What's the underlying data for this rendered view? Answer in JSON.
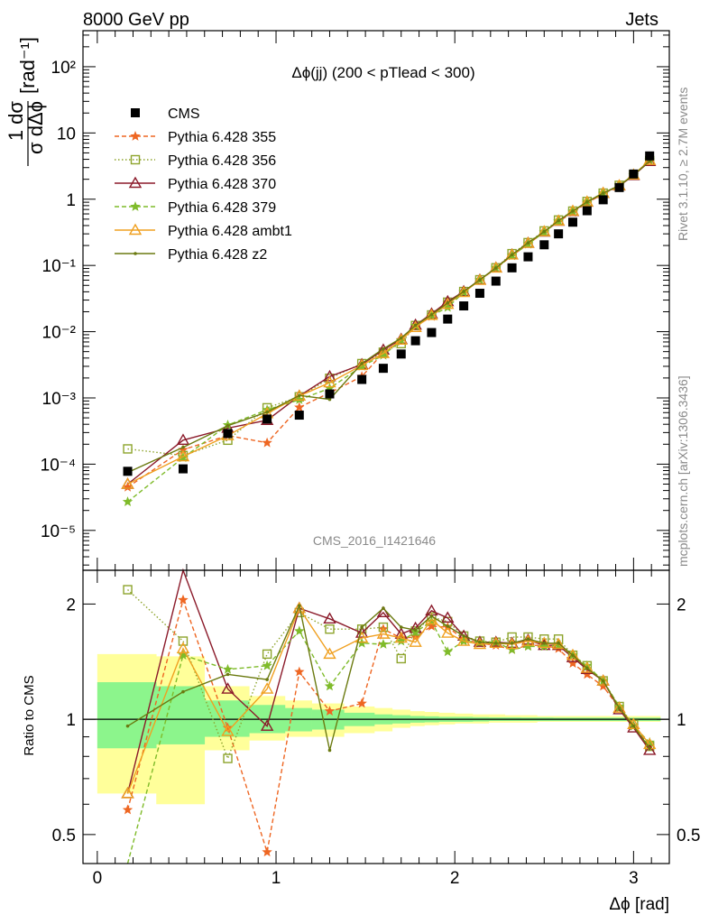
{
  "header": {
    "left": "8000 GeV pp",
    "right": "Jets"
  },
  "side": {
    "rivet": "Rivet 3.1.10, ≥ 2.7M events",
    "mcplots": "mcplots.cern.ch [arXiv:1306.3436]"
  },
  "chart_data": [
    {
      "type": "line",
      "title": "Δϕ(jj) (200 < pTlead <  300)",
      "watermark": "CMS_2016_I1421646",
      "xlabel": "Δϕ [rad]",
      "ylabel": "1/σ dσ/dΔϕ [rad⁻¹]",
      "yscale": "log",
      "xlim": [
        -0.08,
        3.2
      ],
      "ylim": [
        2.5e-06,
        350
      ],
      "y_ticks": [
        "10⁻⁵",
        "10⁻⁴",
        "10⁻³",
        "10⁻²",
        "10⁻¹",
        "1",
        "10",
        "10²"
      ],
      "legend_position": "top-left",
      "series": [
        {
          "name": "CMS",
          "color": "#000000",
          "marker": "square",
          "x": [
            0.17,
            0.48,
            0.73,
            0.95,
            1.13,
            1.3,
            1.48,
            1.6,
            1.7,
            1.78,
            1.87,
            1.96,
            2.05,
            2.14,
            2.23,
            2.32,
            2.41,
            2.5,
            2.58,
            2.66,
            2.74,
            2.83,
            2.92,
            3.0,
            3.09
          ],
          "values": [
            7.8e-05,
            8.5e-05,
            0.00029,
            0.00048,
            0.00055,
            0.00115,
            0.0019,
            0.0028,
            0.0046,
            0.0073,
            0.0097,
            0.0155,
            0.0245,
            0.038,
            0.058,
            0.092,
            0.135,
            0.205,
            0.3,
            0.45,
            0.67,
            0.98,
            1.5,
            2.4,
            4.5
          ]
        },
        {
          "name": "Pythia 6.428 355",
          "color": "#ee6622",
          "marker": "star",
          "dash": "5,3",
          "x": [
            0.17,
            0.48,
            0.73,
            0.95,
            1.13,
            1.3,
            1.48,
            1.6,
            1.7,
            1.78,
            1.87,
            1.96,
            2.05,
            2.14,
            2.23,
            2.32,
            2.41,
            2.5,
            2.58,
            2.66,
            2.74,
            2.83,
            2.92,
            3.0,
            3.09
          ],
          "values": [
            4.5e-05,
            0.000165,
            0.00027,
            0.00021,
            0.00072,
            0.0012,
            0.0021,
            0.0048,
            0.0075,
            0.012,
            0.017,
            0.027,
            0.04,
            0.06,
            0.09,
            0.14,
            0.21,
            0.32,
            0.46,
            0.63,
            0.88,
            1.2,
            1.6,
            2.3,
            3.8
          ]
        },
        {
          "name": "Pythia 6.428 356",
          "color": "#8da42c",
          "marker": "open-square",
          "dash": "1.5,2.5",
          "x": [
            0.17,
            0.48,
            0.73,
            0.95,
            1.13,
            1.3,
            1.48,
            1.6,
            1.7,
            1.78,
            1.87,
            1.96,
            2.05,
            2.14,
            2.23,
            2.32,
            2.41,
            2.5,
            2.58,
            2.66,
            2.74,
            2.83,
            2.92,
            3.0,
            3.09
          ],
          "values": [
            0.00017,
            0.000135,
            0.00023,
            0.00071,
            0.00104,
            0.00198,
            0.0033,
            0.0049,
            0.0066,
            0.0124,
            0.0179,
            0.0279,
            0.0404,
            0.0608,
            0.0922,
            0.1507,
            0.2209,
            0.3321,
            0.4851,
            0.6615,
            0.9246,
            1.2348,
            1.6215,
            2.328,
            3.825
          ]
        },
        {
          "name": "Pythia 6.428 370",
          "color": "#8b1a2a",
          "marker": "open-triangle",
          "dash": "",
          "x": [
            0.17,
            0.48,
            0.73,
            0.95,
            1.13,
            1.3,
            1.48,
            1.6,
            1.7,
            1.78,
            1.87,
            1.96,
            2.05,
            2.14,
            2.23,
            2.32,
            2.41,
            2.5,
            2.58,
            2.66,
            2.74,
            2.83,
            2.92,
            3.0,
            3.09
          ],
          "values": [
            5e-05,
            0.00023,
            0.00035,
            0.00046,
            0.00107,
            0.0021,
            0.0032,
            0.0053,
            0.0077,
            0.0126,
            0.0186,
            0.0285,
            0.0405,
            0.0605,
            0.0921,
            0.1453,
            0.2174,
            0.3199,
            0.4668,
            0.6541,
            0.9038,
            1.23,
            1.59,
            2.28,
            3.73
          ]
        },
        {
          "name": "Pythia 6.428 379",
          "color": "#7fbb2a",
          "marker": "star",
          "dash": "5,3",
          "x": [
            0.17,
            0.48,
            0.73,
            0.95,
            1.13,
            1.3,
            1.48,
            1.6,
            1.7,
            1.78,
            1.87,
            1.96,
            2.05,
            2.14,
            2.23,
            2.32,
            2.41,
            2.5,
            2.58,
            2.66,
            2.74,
            2.83,
            2.92,
            3.0,
            3.09
          ],
          "values": [
            2.7e-05,
            0.000125,
            0.00039,
            0.00066,
            0.00094,
            0.0014,
            0.003,
            0.0044,
            0.0074,
            0.0123,
            0.0175,
            0.0233,
            0.0392,
            0.0605,
            0.0922,
            0.1398,
            0.2093,
            0.3178,
            0.468,
            0.6615,
            0.9246,
            1.2348,
            1.6215,
            2.304,
            3.915
          ]
        },
        {
          "name": "Pythia 6.428 ambt1",
          "color": "#f0a020",
          "marker": "open-triangle",
          "dash": "",
          "x": [
            0.17,
            0.48,
            0.73,
            0.95,
            1.13,
            1.3,
            1.48,
            1.6,
            1.7,
            1.78,
            1.87,
            1.96,
            2.05,
            2.14,
            2.23,
            2.32,
            2.41,
            2.5,
            2.58,
            2.66,
            2.74,
            2.83,
            2.92,
            3.0,
            3.09
          ],
          "values": [
            5e-05,
            0.00013,
            0.00027,
            0.00058,
            0.00107,
            0.0017,
            0.0031,
            0.0047,
            0.0075,
            0.0116,
            0.0177,
            0.026,
            0.0392,
            0.0597,
            0.0916,
            0.1444,
            0.2165,
            0.324,
            0.471,
            0.6615,
            0.9112,
            1.2348,
            1.6065,
            2.328,
            3.87
          ]
        },
        {
          "name": "Pythia 6.428 z2",
          "color": "#6b7a10",
          "marker": "dot",
          "dash": "",
          "x": [
            0.17,
            0.48,
            0.73,
            0.95,
            1.13,
            1.3,
            1.48,
            1.6,
            1.7,
            1.78,
            1.87,
            1.96,
            2.05,
            2.14,
            2.23,
            2.32,
            2.41,
            2.5,
            2.58,
            2.66,
            2.74,
            2.83,
            2.92,
            3.0,
            3.09
          ],
          "values": [
            7.5e-05,
            0.00018,
            0.00038,
            0.00061,
            0.00109,
            0.00095,
            0.0033,
            0.0055,
            0.008,
            0.0125,
            0.018,
            0.0271,
            0.0404,
            0.0605,
            0.0916,
            0.1453,
            0.2187,
            0.324,
            0.474,
            0.6615,
            0.9112,
            1.2348,
            1.6065,
            2.304,
            3.78
          ]
        }
      ]
    },
    {
      "type": "line",
      "ylabel": "Ratio to CMS",
      "xlabel": "Δϕ [rad]",
      "yscale": "log",
      "ylim": [
        0.42,
        2.45
      ],
      "xlim": [
        -0.08,
        3.2
      ],
      "x_ticks": [
        "0",
        "1",
        "2",
        "3"
      ],
      "y_ticks": [
        "0.5",
        "1",
        "2"
      ],
      "bands": {
        "x_edges": [
          0.0,
          0.33,
          0.6,
          0.85,
          1.05,
          1.2,
          1.38,
          1.55,
          1.65,
          1.75,
          1.83,
          1.91,
          2.0,
          2.1,
          2.19,
          2.28,
          2.37,
          2.46,
          2.55,
          2.63,
          2.71,
          2.79,
          2.88,
          2.96,
          3.05,
          3.15
        ],
        "stat_low": [
          0.84,
          0.86,
          0.9,
          0.92,
          0.93,
          0.94,
          0.96,
          0.97,
          0.975,
          0.98,
          0.982,
          0.985,
          0.985,
          0.987,
          0.99,
          0.99,
          0.99,
          0.99,
          0.99,
          0.99,
          0.99,
          0.99,
          0.99,
          0.99,
          0.99
        ],
        "stat_high": [
          1.25,
          1.22,
          1.12,
          1.09,
          1.07,
          1.06,
          1.04,
          1.03,
          1.025,
          1.02,
          1.018,
          1.015,
          1.015,
          1.013,
          1.012,
          1.012,
          1.011,
          1.011,
          1.01,
          1.01,
          1.01,
          1.01,
          1.01,
          1.01,
          1.01
        ],
        "total_low": [
          0.64,
          0.6,
          0.83,
          0.88,
          0.9,
          0.9,
          0.92,
          0.93,
          0.95,
          0.96,
          0.965,
          0.97,
          0.975,
          0.975,
          0.98,
          0.98,
          0.98,
          0.985,
          0.985,
          0.985,
          0.985,
          0.985,
          0.985,
          0.985,
          0.985
        ],
        "total_high": [
          1.48,
          1.46,
          1.22,
          1.15,
          1.12,
          1.1,
          1.08,
          1.07,
          1.06,
          1.05,
          1.045,
          1.04,
          1.035,
          1.03,
          1.03,
          1.025,
          1.025,
          1.02,
          1.02,
          1.02,
          1.02,
          1.02,
          1.02,
          1.02,
          1.02
        ],
        "stat_color": "#8cf58c",
        "total_color": "#ffff9a"
      },
      "series": [
        {
          "name": "Pythia 6.428 355",
          "values": [
            0.58,
            2.05,
            0.95,
            0.45,
            1.33,
            1.05,
            1.1,
            1.72,
            1.63,
            1.64,
            1.75,
            1.74,
            1.62,
            1.58,
            1.56,
            1.52,
            1.56,
            1.56,
            1.53,
            1.4,
            1.31,
            1.22,
            1.07,
            0.96,
            0.85
          ]
        },
        {
          "name": "Pythia 6.428 356",
          "values": [
            2.18,
            1.6,
            0.79,
            1.48,
            1.9,
            1.72,
            1.72,
            1.74,
            1.44,
            1.7,
            1.85,
            1.8,
            1.65,
            1.6,
            1.59,
            1.64,
            1.64,
            1.62,
            1.62,
            1.47,
            1.38,
            1.26,
            1.08,
            0.97,
            0.85
          ]
        },
        {
          "name": "Pythia 6.428 370",
          "values": [
            0.64,
            2.7,
            1.2,
            0.96,
            1.95,
            1.83,
            1.68,
            1.9,
            1.67,
            1.73,
            1.92,
            1.84,
            1.65,
            1.59,
            1.59,
            1.58,
            1.61,
            1.56,
            1.56,
            1.45,
            1.35,
            1.26,
            1.06,
            0.95,
            0.83
          ]
        },
        {
          "name": "Pythia 6.428 379",
          "values": [
            0.35,
            1.47,
            1.35,
            1.38,
            1.7,
            1.22,
            1.58,
            1.57,
            1.6,
            1.69,
            1.8,
            1.5,
            1.6,
            1.59,
            1.59,
            1.52,
            1.55,
            1.55,
            1.56,
            1.47,
            1.38,
            1.26,
            1.08,
            0.96,
            0.87
          ]
        },
        {
          "name": "Pythia 6.428 ambt1",
          "values": [
            0.64,
            1.53,
            0.93,
            1.2,
            1.95,
            1.48,
            1.63,
            1.67,
            1.63,
            1.59,
            1.82,
            1.68,
            1.6,
            1.57,
            1.58,
            1.57,
            1.6,
            1.58,
            1.57,
            1.47,
            1.36,
            1.26,
            1.07,
            0.97,
            0.86
          ]
        },
        {
          "name": "Pythia 6.428 z2",
          "values": [
            0.96,
            1.18,
            1.31,
            1.27,
            1.98,
            0.83,
            1.74,
            1.95,
            1.74,
            1.71,
            1.86,
            1.75,
            1.65,
            1.59,
            1.58,
            1.58,
            1.62,
            1.58,
            1.58,
            1.47,
            1.36,
            1.26,
            1.07,
            0.96,
            0.84
          ]
        }
      ]
    }
  ]
}
